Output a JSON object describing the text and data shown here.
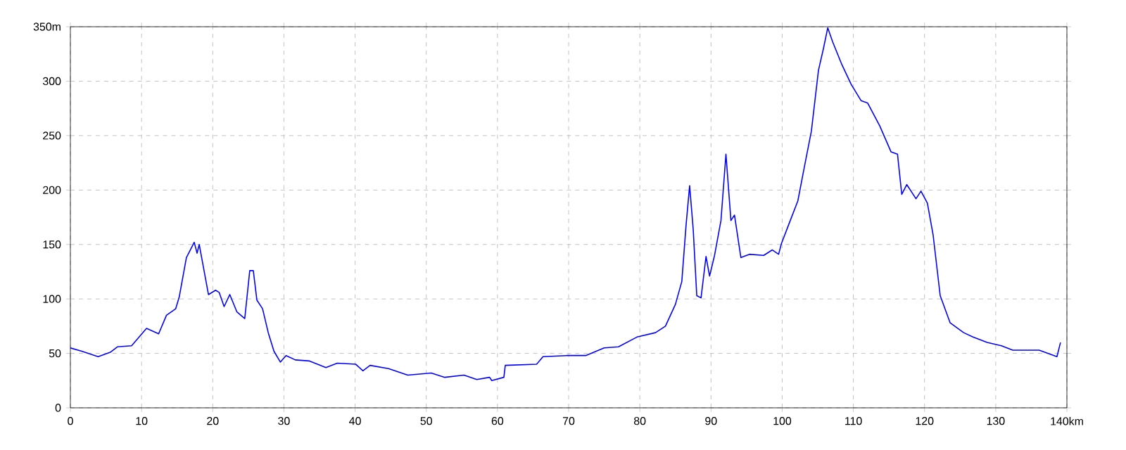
{
  "chart_data": {
    "type": "line",
    "color": "#0000ff",
    "grid": true,
    "xlim": [
      0,
      140
    ],
    "ylim": [
      0,
      350
    ],
    "xticks": [
      0,
      10,
      20,
      30,
      40,
      50,
      60,
      70,
      80,
      90,
      100,
      110,
      120,
      130,
      {
        "value": 140,
        "label": "140km"
      }
    ],
    "yticks": [
      0,
      50,
      100,
      150,
      200,
      250,
      300,
      {
        "value": 350,
        "label": "350m"
      }
    ],
    "x": [
      0,
      1.6,
      3.9,
      5.6,
      6.6,
      8.6,
      10.7,
      12.4,
      13.5,
      14.8,
      15.3,
      16.3,
      17.4,
      17.8,
      18.1,
      19.4,
      20.4,
      20.9,
      21.6,
      22.4,
      23.4,
      24.5,
      25.2,
      25.7,
      26.2,
      27.0,
      27.8,
      28.6,
      29.5,
      30.3,
      31.6,
      33.6,
      35.9,
      37.5,
      40.1,
      41.1,
      42.1,
      44.7,
      47.4,
      50.7,
      52.6,
      55.3,
      57.1,
      58.9,
      59.2,
      60.9,
      61.1,
      65.5,
      66.4,
      69.7,
      72.4,
      75.0,
      77.0,
      79.6,
      82.2,
      83.6,
      85.0,
      85.9,
      86.5,
      87.0,
      87.5,
      88.0,
      88.6,
      89.3,
      89.8,
      90.5,
      91.4,
      92.1,
      92.8,
      93.3,
      94.2,
      95.4,
      97.4,
      98.6,
      99.5,
      99.9,
      100.9,
      102.2,
      103.2,
      104.1,
      105.1,
      105.8,
      106.4,
      107.1,
      108.4,
      109.7,
      111.1,
      112.0,
      113.7,
      115.3,
      116.2,
      116.8,
      117.5,
      118.8,
      119.5,
      120.4,
      121.2,
      122.2,
      123.6,
      125.5,
      126.8,
      128.8,
      130.8,
      132.4,
      136.1,
      138.6,
      139.1
    ],
    "values": [
      55,
      52,
      47,
      51,
      56,
      57,
      73,
      68,
      85,
      91,
      102,
      138,
      152,
      142,
      150,
      104,
      108,
      106,
      93,
      104,
      88,
      82,
      126,
      126,
      99,
      91,
      69,
      52,
      42,
      48,
      44,
      43,
      37,
      41,
      40,
      34,
      39,
      36,
      30,
      32,
      28,
      30,
      26,
      28,
      25,
      28,
      39,
      40,
      47,
      48,
      48,
      55,
      56,
      65,
      69,
      75,
      95,
      116,
      168,
      204,
      164,
      103,
      101,
      139,
      121,
      140,
      172,
      233,
      172,
      177,
      138,
      141,
      140,
      145,
      141,
      151,
      168,
      190,
      224,
      254,
      310,
      330,
      349,
      336,
      315,
      297,
      282,
      280,
      259,
      235,
      233,
      196,
      205,
      192,
      199,
      188,
      159,
      103,
      78,
      69,
      65,
      60,
      57,
      53,
      53,
      47,
      60
    ]
  }
}
